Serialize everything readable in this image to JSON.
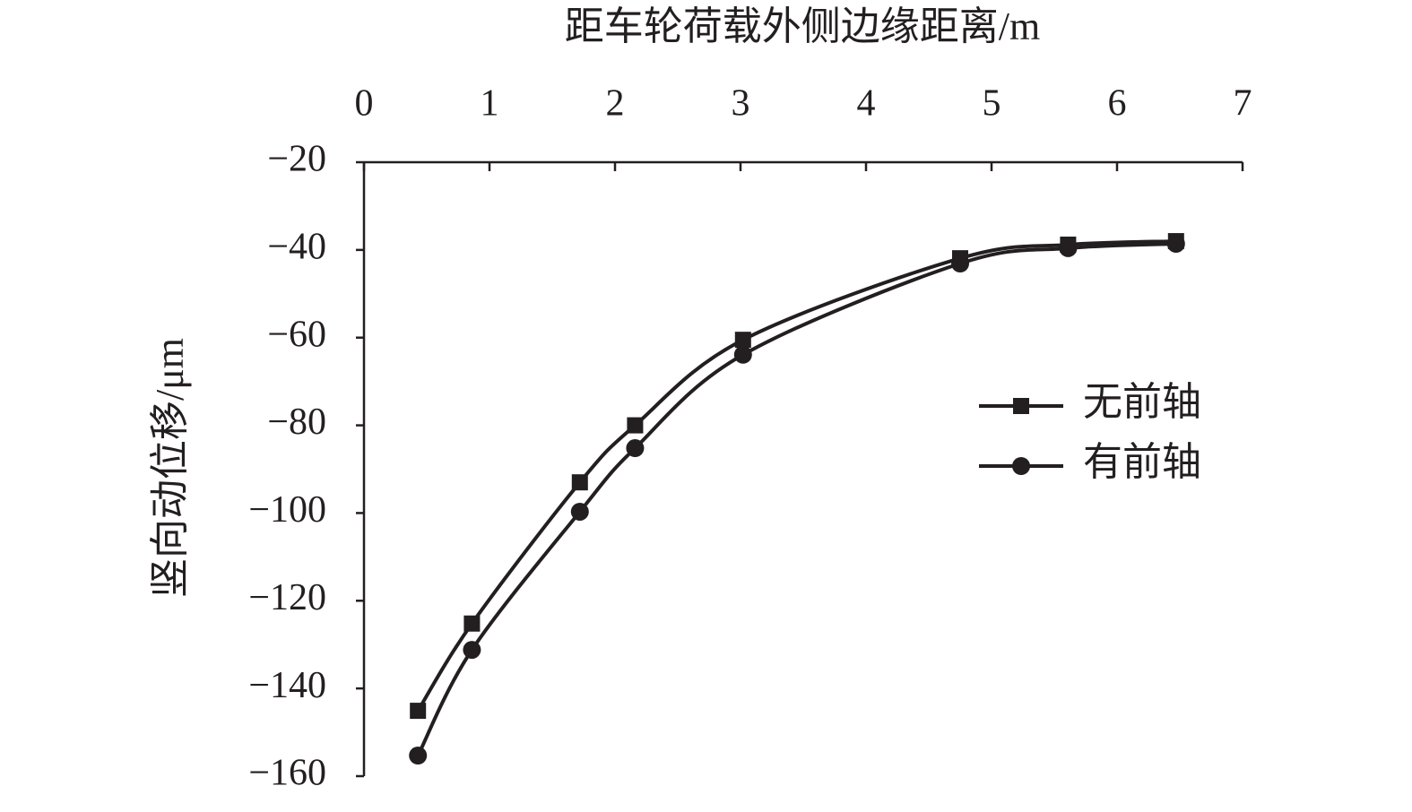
{
  "chart_data": {
    "type": "line",
    "x_label": "距车轮荷载外侧边缘距离/m",
    "y_label": "竖向动位移/μm",
    "x": [
      0.43,
      0.86,
      1.72,
      2.16,
      3.02,
      4.75,
      5.61,
      6.47
    ],
    "series": [
      {
        "name": "无前轴",
        "color": "#231f20",
        "marker": "square",
        "values": [
          -145.1,
          -125.2,
          -93,
          -80,
          -60.5,
          -41.9,
          -38.8,
          -38
        ]
      },
      {
        "name": "有前轴",
        "color": "#231f20",
        "marker": "circle",
        "values": [
          -155.3,
          -131.2,
          -99.7,
          -85.2,
          -63.9,
          -43.1,
          -39.6,
          -38.6
        ]
      }
    ],
    "xlim": [
      0,
      7
    ],
    "xticks": [
      0,
      1,
      2,
      3,
      4,
      5,
      6,
      7
    ],
    "ylim": [
      -20,
      -160
    ],
    "yticks": [
      {
        "value": -20,
        "label": "−20"
      },
      {
        "value": -40,
        "label": "−40"
      },
      {
        "value": -60,
        "label": "−60"
      },
      {
        "value": -80,
        "label": "−80"
      },
      {
        "value": -100,
        "label": "−100"
      },
      {
        "value": -120,
        "label": "−120"
      },
      {
        "value": -140,
        "label": "−140"
      },
      {
        "value": -160,
        "label": "−160"
      }
    ],
    "x_axis_position": "top",
    "smooth": true,
    "grid": false,
    "legend": "right"
  }
}
